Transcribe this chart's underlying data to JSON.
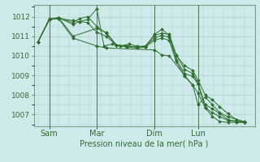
{
  "background_color": "#ceeaea",
  "grid_color": "#aed0d0",
  "line_color": "#2d6e2d",
  "marker_color": "#2d6e2d",
  "vline_color": "#5a7a5a",
  "xlabel": "Pression niveau de la mer( hPa )",
  "xlabel_color": "#2d6e2d",
  "tick_color": "#2d6e2d",
  "ylim": [
    1006.4,
    1012.6
  ],
  "yticks": [
    1007,
    1008,
    1009,
    1010,
    1011,
    1012
  ],
  "day_labels": [
    "Sam",
    "Mar",
    "Dim",
    "Lun"
  ],
  "day_positions": [
    0.055,
    0.285,
    0.565,
    0.775
  ],
  "series": [
    {
      "x": [
        0.0,
        0.055,
        0.1,
        0.17,
        0.2,
        0.24,
        0.285,
        0.32,
        0.36,
        0.4,
        0.44,
        0.48,
        0.52,
        0.565,
        0.6,
        0.635,
        0.67,
        0.71,
        0.75,
        0.775,
        0.81,
        0.845,
        0.88,
        0.92,
        0.96,
        1.0
      ],
      "y": [
        1010.7,
        1011.85,
        1011.9,
        1011.8,
        1011.75,
        1011.85,
        1012.4,
        1010.5,
        1010.6,
        1010.5,
        1010.6,
        1010.5,
        1010.45,
        1011.1,
        1011.35,
        1011.05,
        1010.0,
        1009.5,
        1009.25,
        1008.75,
        1008.0,
        1007.75,
        1007.4,
        1007.05,
        1006.75,
        1006.6
      ]
    },
    {
      "x": [
        0.0,
        0.055,
        0.1,
        0.17,
        0.2,
        0.24,
        0.285,
        0.33,
        0.38,
        0.43,
        0.48,
        0.52,
        0.565,
        0.6,
        0.635,
        0.67,
        0.71,
        0.75,
        0.775,
        0.81,
        0.845,
        0.88,
        0.92,
        0.96,
        1.0
      ],
      "y": [
        1010.7,
        1011.85,
        1011.95,
        1011.7,
        1011.9,
        1012.0,
        1011.5,
        1011.15,
        1010.55,
        1010.5,
        1010.45,
        1010.5,
        1011.05,
        1011.15,
        1011.1,
        1010.05,
        1009.3,
        1009.1,
        1008.6,
        1007.5,
        1007.3,
        1007.05,
        1006.75,
        1006.65,
        1006.6
      ]
    },
    {
      "x": [
        0.0,
        0.055,
        0.1,
        0.17,
        0.2,
        0.24,
        0.285,
        0.33,
        0.38,
        0.43,
        0.48,
        0.52,
        0.565,
        0.6,
        0.635,
        0.67,
        0.71,
        0.75,
        0.775,
        0.81,
        0.845,
        0.88,
        0.92,
        0.96,
        1.0
      ],
      "y": [
        1010.7,
        1011.85,
        1011.95,
        1011.6,
        1011.75,
        1011.7,
        1011.2,
        1011.0,
        1010.55,
        1010.5,
        1010.45,
        1010.5,
        1010.9,
        1011.05,
        1010.95,
        1009.8,
        1009.1,
        1008.95,
        1008.55,
        1007.35,
        1007.1,
        1006.9,
        1006.7,
        1006.65,
        1006.6
      ]
    },
    {
      "x": [
        0.0,
        0.055,
        0.1,
        0.17,
        0.285,
        0.33,
        0.38,
        0.43,
        0.48,
        0.52,
        0.565,
        0.6,
        0.635,
        0.67,
        0.71,
        0.75,
        0.775,
        0.81,
        0.845,
        0.88,
        0.92,
        0.96,
        1.0
      ],
      "y": [
        1010.7,
        1011.85,
        1011.95,
        1011.0,
        1011.4,
        1011.2,
        1010.55,
        1010.45,
        1010.4,
        1010.45,
        1010.8,
        1010.9,
        1010.8,
        1009.7,
        1008.95,
        1008.5,
        1008.1,
        1007.35,
        1006.9,
        1006.65,
        1006.6,
        1006.6,
        1006.6
      ]
    },
    {
      "x": [
        0.0,
        0.055,
        0.1,
        0.17,
        0.285,
        0.33,
        0.565,
        0.6,
        0.635,
        0.71,
        0.75,
        0.775,
        0.81,
        0.845,
        0.88,
        0.92,
        0.96,
        1.0
      ],
      "y": [
        1010.7,
        1011.9,
        1011.9,
        1010.9,
        1010.5,
        1010.4,
        1010.3,
        1010.05,
        1010.0,
        1009.0,
        1008.5,
        1007.5,
        1007.9,
        1007.5,
        1007.1,
        1006.9,
        1006.75,
        1006.65
      ]
    }
  ]
}
